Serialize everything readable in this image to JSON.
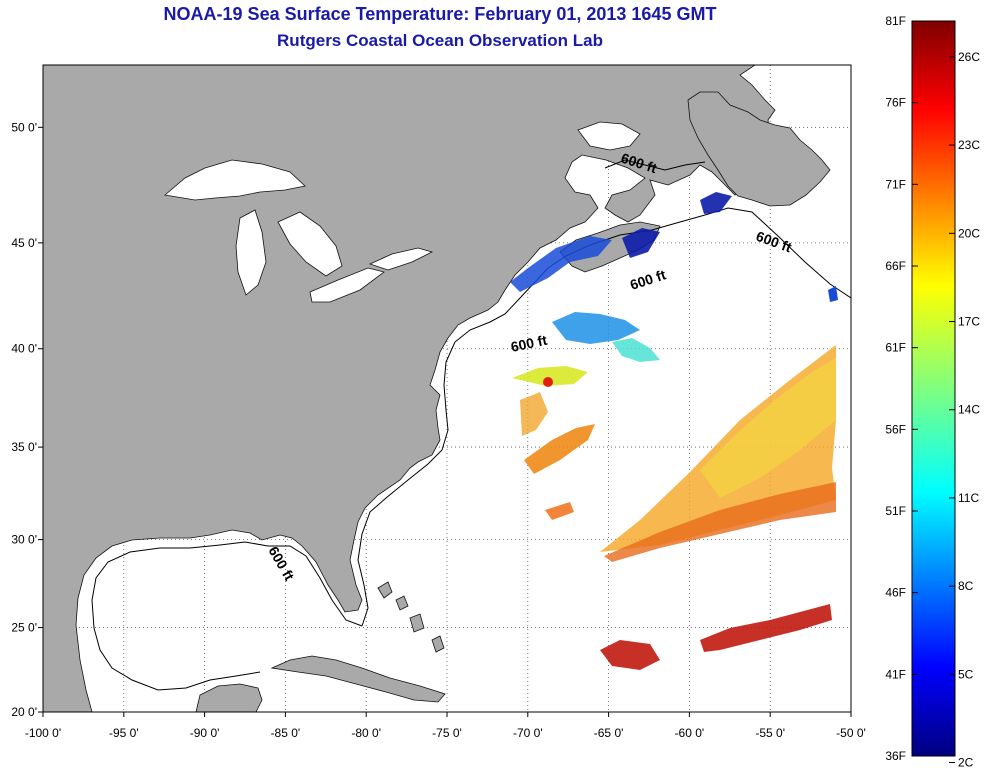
{
  "title_line1": "NOAA-19 Sea Surface Temperature:  February 01, 2013 1645 GMT",
  "title_line2": "Rutgers Coastal Ocean Observation Lab",
  "map": {
    "lon_range": [
      -100,
      -50
    ],
    "lat_range": [
      20,
      52.5
    ],
    "lon_ticks": [
      "-100 0'",
      "-95 0'",
      "-90 0'",
      "-85 0'",
      "-80 0'",
      "-75 0'",
      "-70 0'",
      "-65 0'",
      "-60 0'",
      "-55 0'",
      "-50 0'"
    ],
    "lat_ticks": [
      "50 0'",
      "45 0'",
      "40 0'",
      "35 0'",
      "30 0'",
      "25 0'",
      "20 0'"
    ],
    "contour_label": "600 ft",
    "land_color": "#a9a9a9",
    "ocean_color": "#ffffff"
  },
  "colorbar": {
    "fahrenheit": [
      "81F",
      "76F",
      "71F",
      "66F",
      "61F",
      "56F",
      "51F",
      "46F",
      "41F",
      "36F"
    ],
    "celsius": [
      "26C",
      "23C",
      "20C",
      "17C",
      "14C",
      "11C",
      "8C",
      "5C",
      "2C"
    ]
  }
}
